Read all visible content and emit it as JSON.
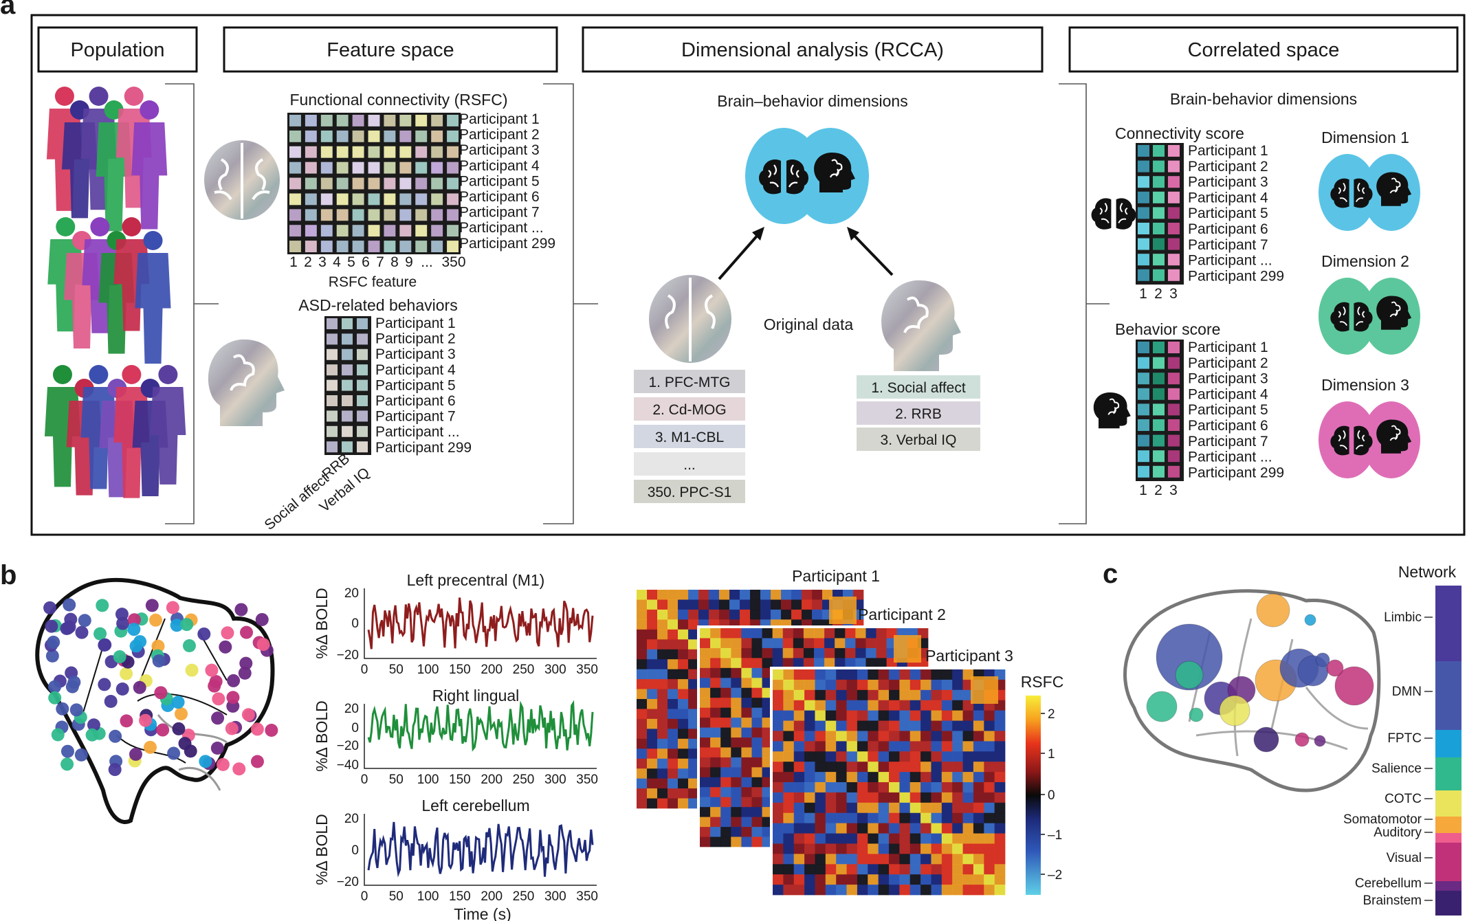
{
  "panel_letters": {
    "a": "a",
    "b": "b",
    "c": "c"
  },
  "headers": {
    "population": "Population",
    "feature_space": "Feature space",
    "dimensional_analysis": "Dimensional analysis (RCCA)",
    "correlated_space": "Correlated space"
  },
  "feature_space": {
    "fc_title": "Functional connectivity (RSFC)",
    "participants": [
      "Participant 1",
      "Participant 2",
      "Participant 3",
      "Participant 4",
      "Participant 5",
      "Participant 6",
      "Participant 7",
      "Participant ...",
      "Participant 299"
    ],
    "rsfc_ticks": [
      "1",
      "2",
      "3",
      "4",
      "5",
      "6",
      "7",
      "8",
      "9",
      "...",
      "350"
    ],
    "rsfc_axis": "RSFC feature",
    "asd_title": "ASD-related behaviors",
    "behavior_cols": [
      "Social affect",
      "RRB",
      "Verbal IQ"
    ]
  },
  "dimensional": {
    "title": "Brain–behavior dimensions",
    "original": "Original data",
    "connections": [
      "1. PFC-MTG",
      "2. Cd-MOG",
      "3. M1-CBL",
      "...",
      "350. PPC-S1"
    ],
    "behaviors": [
      "1. Social affect",
      "2. RRB",
      "3. Verbal IQ"
    ],
    "conn_colors": [
      "#cfcfd4",
      "#e4d6d9",
      "#d3d7e2",
      "#e6e6e6",
      "#d2d4cc"
    ],
    "beh_colors": [
      "#cfe0da",
      "#d9d3dd",
      "#d6d6d0"
    ]
  },
  "correlated": {
    "title": "Brain-behavior dimensions",
    "conn_score": "Connectivity score",
    "beh_score": "Behavior score",
    "score_cols": [
      "1",
      "2",
      "3"
    ],
    "dimensions": [
      "Dimension 1",
      "Dimension 2",
      "Dimension 3"
    ],
    "dim_colors": [
      "#5bc4e6",
      "#5cc79c",
      "#df6db6"
    ],
    "dim1_color": "#7cd0ec"
  },
  "panel_b": {
    "ylabel": "%Δ BOLD",
    "xlabel": "Time (s)",
    "time_ticks": [
      "0",
      "50",
      "100",
      "150",
      "200",
      "250",
      "300",
      "350"
    ],
    "traces": [
      {
        "title": "Left precentral (M1)",
        "color": "#8f1d1d",
        "yticks": [
          "20",
          "0",
          "−20"
        ]
      },
      {
        "title": "Right lingual",
        "color": "#1f8f3a",
        "yticks": [
          "20",
          "0",
          "−20",
          "−40"
        ]
      },
      {
        "title": "Left cerebellum",
        "color": "#1f2b7a",
        "yticks": [
          "20",
          "0",
          "−20"
        ]
      }
    ],
    "matrix_labels": [
      "Participant 1",
      "Participant 2",
      "Participant 3"
    ],
    "colorbar_title": "RSFC",
    "colorbar_ticks": [
      "2",
      "1",
      "0",
      "–1",
      "–2"
    ]
  },
  "panel_c": {
    "legend_title": "Network",
    "networks": [
      {
        "name": "Limbic",
        "color": "#4a3a9a"
      },
      {
        "name": "DMN",
        "color": "#4657aa"
      },
      {
        "name": "FPTC",
        "color": "#1aa0d8"
      },
      {
        "name": "Salience",
        "color": "#2fb98c"
      },
      {
        "name": "COTC",
        "color": "#e9e45c"
      },
      {
        "name": "Somatomotor",
        "color": "#f6a83a"
      },
      {
        "name": "Auditory",
        "color": "#ef5d8d"
      },
      {
        "name": "Visual",
        "color": "#c0317a"
      },
      {
        "name": "Cerebellum",
        "color": "#6b2a84"
      },
      {
        "name": "Brainstem",
        "color": "#3a2170"
      }
    ]
  }
}
